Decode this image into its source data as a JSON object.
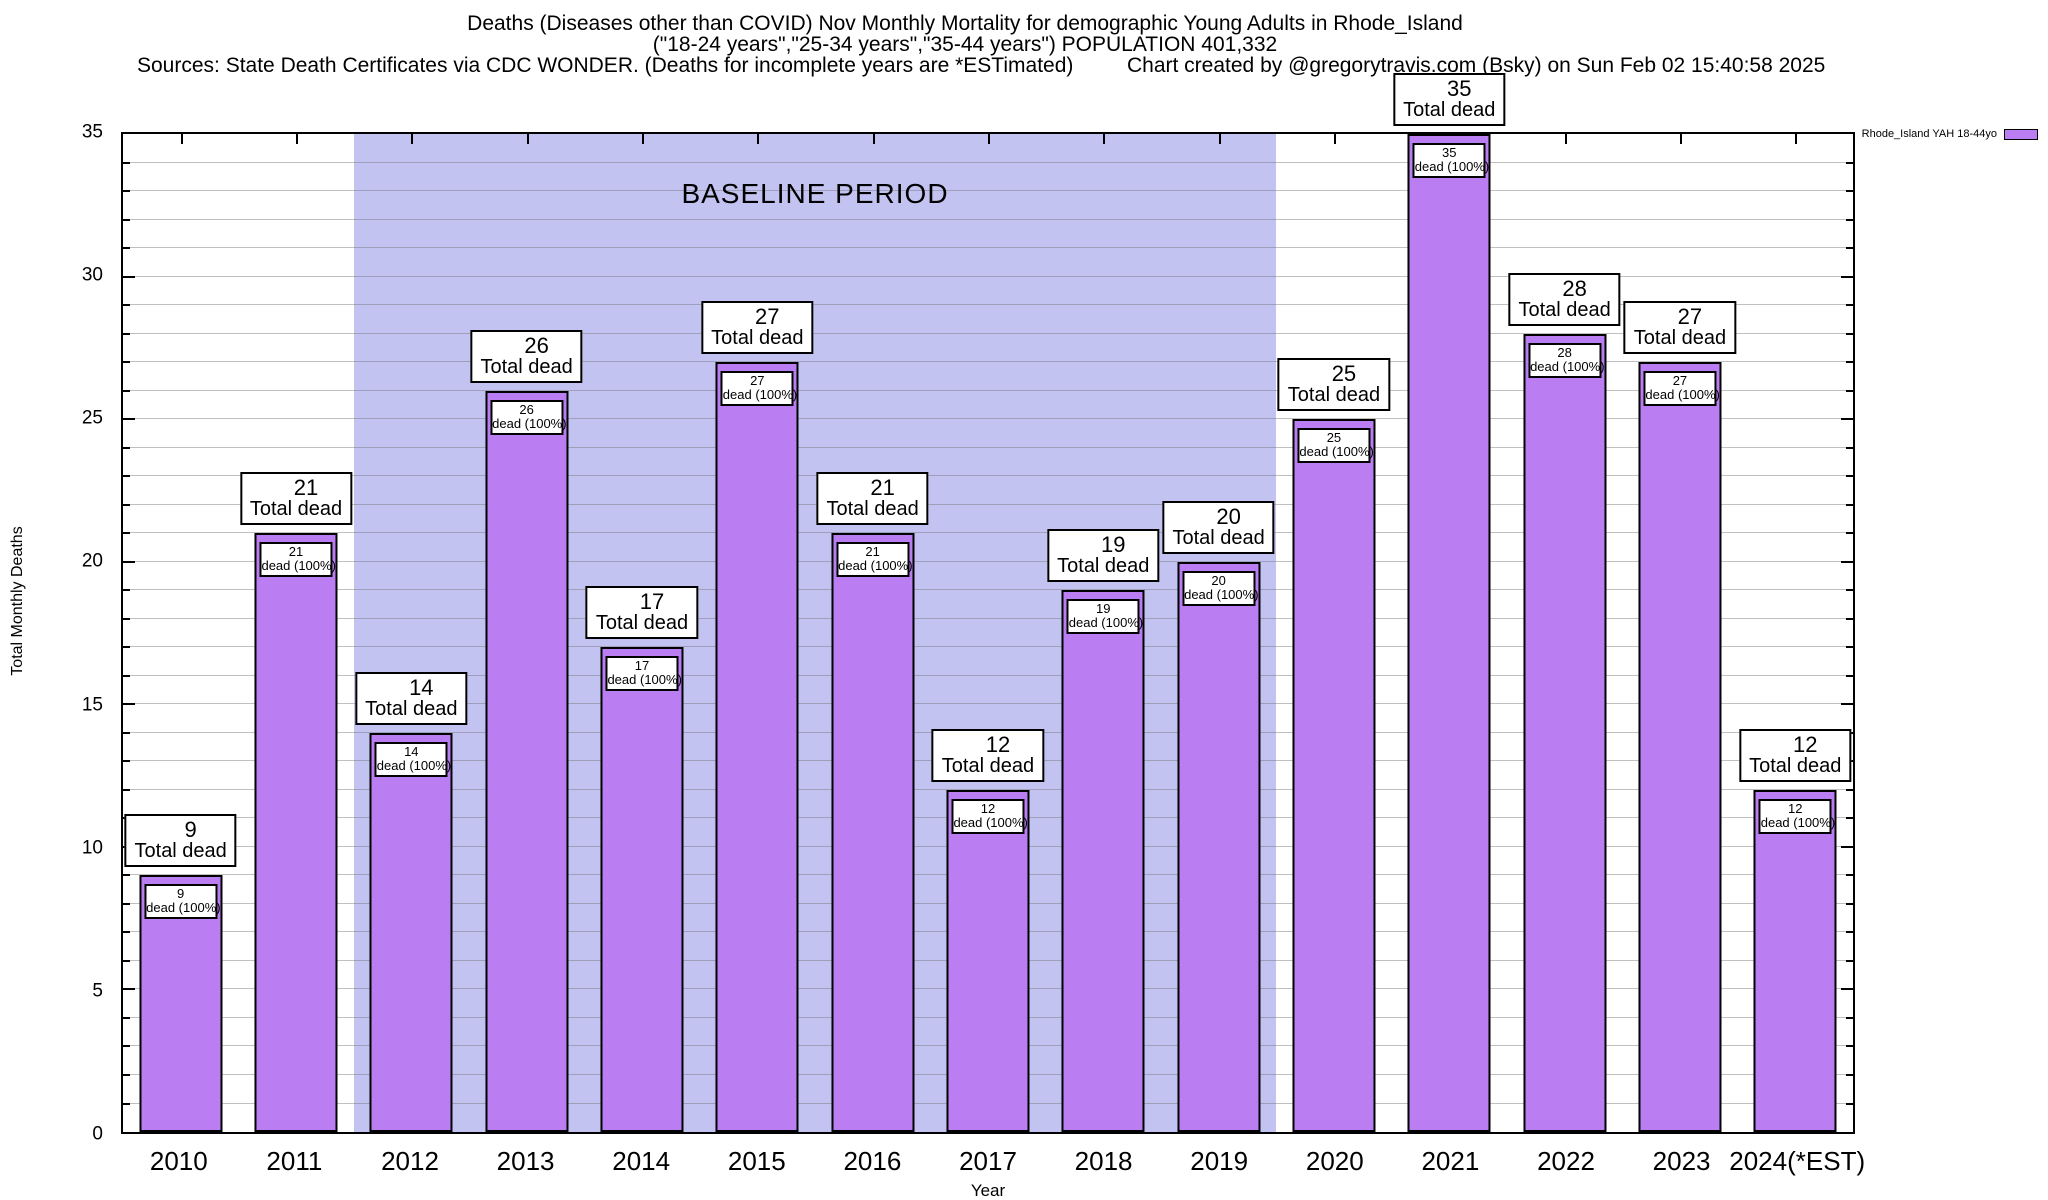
{
  "header": {
    "title_line1": "Deaths (Diseases other than COVID) Nov Monthly Mortality for demographic Young Adults in Rhode_Island",
    "title_line2": "(\"18-24 years\",\"25-34 years\",\"35-44 years\") POPULATION 401,332",
    "sources": "Sources: State Death Certificates via CDC WONDER. (Deaths for incomplete years are *ESTimated)",
    "credit": "Chart created by @gregorytravis.com (Bsky) on Sun Feb 02 15:40:58 2025"
  },
  "legend": {
    "label": "Rhode_Island YAH 18-44yo",
    "swatch_color": "#bb7ef2"
  },
  "chart_data": {
    "type": "bar",
    "title": "Deaths (Diseases other than COVID) Nov Monthly Mortality for demographic Young Adults in Rhode_Island",
    "subtitle": "(\"18-24 years\",\"25-34 years\",\"35-44 years\") POPULATION 401,332",
    "series_name": "Rhode_Island YAH 18-44yo",
    "categories": [
      "2010",
      "2011",
      "2012",
      "2013",
      "2014",
      "2015",
      "2016",
      "2017",
      "2018",
      "2019",
      "2020",
      "2021",
      "2022",
      "2023",
      "2024(*EST)"
    ],
    "values": [
      9,
      21,
      14,
      26,
      17,
      27,
      21,
      12,
      19,
      20,
      25,
      35,
      28,
      27,
      12
    ],
    "xlabel": "Year",
    "ylabel": "Total Monthly Deaths",
    "ylim": [
      0,
      35
    ],
    "y_major_ticks": [
      0,
      5,
      10,
      15,
      20,
      25,
      30,
      35
    ],
    "y_minor_tick_step": 1,
    "grid": true,
    "legend_position": "top-right-outside",
    "bar_color": "#bb7ef2",
    "annotations": {
      "baseline_label": "BASELINE PERIOD",
      "baseline_span_categories": [
        "2012",
        "2019"
      ],
      "baseline_fill": "#c3c3f2",
      "outer_label_line2": "Total dead",
      "inner_label_line2": "dead (100%)"
    }
  }
}
